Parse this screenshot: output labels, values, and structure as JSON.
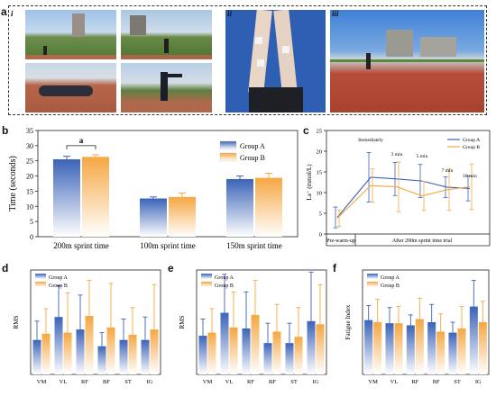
{
  "figure": {
    "panel_a": {
      "letter": "a",
      "sub_labels": [
        "i",
        "ii",
        "iii"
      ]
    },
    "panel_b": {
      "letter": "b"
    },
    "panel_c": {
      "letter": "c"
    },
    "panel_d": {
      "letter": "d"
    },
    "panel_e": {
      "letter": "e"
    },
    "panel_f": {
      "letter": "f"
    }
  },
  "chart_data": [
    {
      "id": "b",
      "type": "bar",
      "title": "",
      "xlabel": "",
      "ylabel": "Time (seconds)",
      "ylim": [
        0,
        35
      ],
      "yticks": [
        0,
        5,
        10,
        15,
        20,
        25,
        30,
        35
      ],
      "categories": [
        "200m sprint time",
        "100m sprint time",
        "150m sprint time"
      ],
      "series": [
        {
          "name": "Group A",
          "values": [
            25.5,
            12.6,
            19.0
          ],
          "errors": [
            1.0,
            0.5,
            1.0
          ],
          "color": "#3b63b8"
        },
        {
          "name": "Group B",
          "values": [
            26.3,
            13.1,
            19.4
          ],
          "errors": [
            0.7,
            1.3,
            1.5
          ],
          "color": "#f5a742"
        }
      ],
      "annotation": "a",
      "legend": "top-right"
    },
    {
      "id": "c",
      "type": "line",
      "xlabel": "",
      "ylabel": "La⁻ (mmol/L)",
      "ylim": [
        0,
        25
      ],
      "yticks": [
        0,
        5,
        10,
        15,
        20,
        25
      ],
      "x_labels": [
        "Pre-warm-up",
        "After 200m sprint time trial"
      ],
      "point_labels": [
        "",
        "Immediately",
        "3 min",
        "5 min",
        "7 min",
        "10 min"
      ],
      "series": [
        {
          "name": "Group A",
          "values": [
            4.0,
            13.7,
            13.3,
            12.8,
            11.3,
            11.0
          ],
          "errors": [
            2.5,
            6.0,
            4.0,
            4.0,
            2.5,
            3.0
          ],
          "color": "#3b63b8"
        },
        {
          "name": "Group B",
          "values": [
            3.8,
            11.7,
            11.4,
            9.2,
            10.7,
            11.4
          ],
          "errors": [
            2.0,
            4.0,
            6.0,
            3.5,
            5.0,
            5.5
          ],
          "color": "#f5a742"
        }
      ],
      "legend": "top-right"
    },
    {
      "id": "d",
      "type": "bar",
      "ylabel": "RMS",
      "ylim": [
        0,
        1
      ],
      "categories": [
        "VM",
        "VL",
        "RF",
        "BF",
        "ST",
        "IG"
      ],
      "series": [
        {
          "name": "Group A",
          "values": [
            0.33,
            0.55,
            0.43,
            0.27,
            0.33,
            0.33
          ],
          "errors": [
            0.18,
            0.3,
            0.33,
            0.13,
            0.2,
            0.22
          ],
          "color": "#3b63b8"
        },
        {
          "name": "Group B",
          "values": [
            0.39,
            0.4,
            0.56,
            0.45,
            0.38,
            0.43
          ],
          "errors": [
            0.24,
            0.38,
            0.34,
            0.42,
            0.26,
            0.43
          ],
          "color": "#f5a742"
        }
      ],
      "legend": "top-left"
    },
    {
      "id": "e",
      "type": "bar",
      "ylabel": "RMS",
      "ylim": [
        0,
        1
      ],
      "categories": [
        "VM",
        "VL",
        "RF",
        "BF",
        "ST",
        "IG"
      ],
      "series": [
        {
          "name": "Group A",
          "values": [
            0.37,
            0.59,
            0.44,
            0.3,
            0.3,
            0.51
          ],
          "errors": [
            0.16,
            0.37,
            0.35,
            0.19,
            0.19,
            0.47
          ],
          "color": "#3b63b8"
        },
        {
          "name": "Group B",
          "values": [
            0.4,
            0.45,
            0.57,
            0.41,
            0.36,
            0.48
          ],
          "errors": [
            0.23,
            0.34,
            0.33,
            0.26,
            0.28,
            0.38
          ],
          "color": "#f5a742"
        }
      ],
      "legend": "top-left"
    },
    {
      "id": "f",
      "type": "bar",
      "ylabel": "Fatigue Index",
      "ylim": [
        0,
        1
      ],
      "categories": [
        "VM",
        "VL",
        "RF",
        "BF",
        "ST",
        "IG"
      ],
      "series": [
        {
          "name": "Group A",
          "values": [
            0.52,
            0.49,
            0.47,
            0.5,
            0.4,
            0.65
          ],
          "errors": [
            0.14,
            0.15,
            0.1,
            0.17,
            0.1,
            0.25
          ],
          "color": "#3b63b8"
        },
        {
          "name": "Group B",
          "values": [
            0.5,
            0.49,
            0.53,
            0.41,
            0.44,
            0.5
          ],
          "errors": [
            0.22,
            0.16,
            0.2,
            0.17,
            0.21,
            0.2
          ],
          "color": "#f5a742"
        }
      ],
      "legend": "top-left"
    }
  ]
}
